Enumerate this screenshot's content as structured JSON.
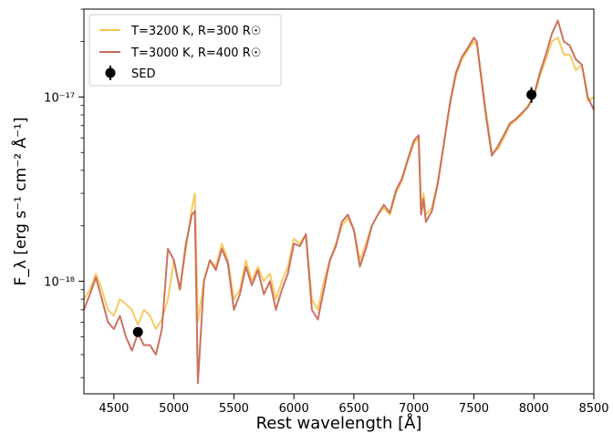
{
  "chart_data": {
    "type": "line",
    "xlabel": "Rest wavelength [Å]",
    "ylabel": "F_λ [erg s⁻¹ cm⁻² Å⁻¹]",
    "x_scale": "linear",
    "y_scale": "log",
    "xlim": [
      4250,
      8500
    ],
    "ylim": [
      2.45e-19,
      3e-17
    ],
    "x_ticks": [
      4500,
      5000,
      5500,
      6000,
      6500,
      7000,
      7500,
      8000,
      8500
    ],
    "x_tick_labels": [
      "4500",
      "5000",
      "5500",
      "6000",
      "6500",
      "7000",
      "7500",
      "8000",
      "8500"
    ],
    "y_ticks": [
      1e-18,
      1e-17
    ],
    "y_tick_labels": [
      "10⁻¹⁸",
      "10⁻¹⁷"
    ],
    "y_minor_ticks": [
      3e-19,
      4e-19,
      5e-19,
      6e-19,
      7e-19,
      8e-19,
      9e-19,
      2e-18,
      3e-18,
      4e-18,
      5e-18,
      6e-18,
      7e-18,
      8e-18,
      9e-18,
      2e-17,
      3e-17
    ],
    "grid": false,
    "legend_position": "top-left",
    "legend": [
      {
        "label": "T=3200 K, R=300 R☉",
        "kind": "line",
        "color": "#f6c453"
      },
      {
        "label": "T=3000 K, R=400 R☉",
        "kind": "line",
        "color": "#c86a58"
      },
      {
        "label": "SED",
        "kind": "errorbar",
        "color": "#000000"
      }
    ],
    "series": [
      {
        "name": "T=3200 K, R=300 R☉",
        "color": "#f6c453",
        "x": [
          4250,
          4300,
          4350,
          4400,
          4450,
          4500,
          4550,
          4600,
          4650,
          4700,
          4750,
          4800,
          4850,
          4900,
          4950,
          5000,
          5050,
          5100,
          5150,
          5175,
          5200,
          5250,
          5300,
          5350,
          5400,
          5450,
          5500,
          5550,
          5600,
          5650,
          5700,
          5750,
          5800,
          5850,
          5900,
          5950,
          6000,
          6050,
          6100,
          6150,
          6200,
          6250,
          6300,
          6350,
          6400,
          6450,
          6500,
          6550,
          6600,
          6650,
          6700,
          6750,
          6800,
          6850,
          6900,
          6950,
          7000,
          7040,
          7060,
          7080,
          7100,
          7150,
          7200,
          7250,
          7300,
          7350,
          7400,
          7450,
          7500,
          7525,
          7550,
          7600,
          7650,
          7700,
          7750,
          7800,
          7850,
          7900,
          7950,
          8000,
          8050,
          8100,
          8150,
          8200,
          8250,
          8300,
          8350,
          8400,
          8450,
          8500
        ],
        "y": [
          8e-19,
          9e-19,
          1.1e-18,
          9e-19,
          7e-19,
          6.5e-19,
          8e-19,
          7.5e-19,
          7e-19,
          5.8e-19,
          7e-19,
          6.5e-19,
          5.5e-19,
          6.2e-19,
          8e-19,
          1.3e-18,
          9e-19,
          1.5e-18,
          2.5e-18,
          3e-18,
          6e-19,
          1e-18,
          1.3e-18,
          1.2e-18,
          1.6e-18,
          1.3e-18,
          8e-19,
          9e-19,
          1.3e-18,
          1e-18,
          1.2e-18,
          1e-18,
          1.1e-18,
          8e-19,
          1e-18,
          1.2e-18,
          1.7e-18,
          1.6e-18,
          1.8e-18,
          8e-19,
          7e-19,
          1e-18,
          1.3e-18,
          1.6e-18,
          2e-18,
          2.2e-18,
          1.9e-18,
          1.3e-18,
          1.6e-18,
          2e-18,
          2.3e-18,
          2.5e-18,
          2.3e-18,
          3e-18,
          3.5e-18,
          4.5e-18,
          5.6e-18,
          6e-18,
          2.5e-18,
          3e-18,
          2.3e-18,
          2.5e-18,
          3.5e-18,
          5.5e-18,
          9e-18,
          1.3e-17,
          1.6e-17,
          1.8e-17,
          2e-17,
          1.9e-17,
          1.5e-17,
          8.5e-18,
          5e-18,
          5.2e-18,
          6e-18,
          7e-18,
          7.5e-18,
          8e-18,
          9e-18,
          1e-17,
          1.3e-17,
          1.6e-17,
          2e-17,
          2.1e-17,
          1.7e-17,
          1.7e-17,
          1.4e-17,
          1.5e-17,
          9.5e-18,
          1e-17
        ]
      },
      {
        "name": "T=3000 K, R=400 R☉",
        "color": "#c86a58",
        "x": [
          4250,
          4300,
          4350,
          4400,
          4450,
          4500,
          4550,
          4600,
          4650,
          4700,
          4750,
          4800,
          4850,
          4900,
          4950,
          5000,
          5050,
          5100,
          5150,
          5175,
          5200,
          5250,
          5300,
          5350,
          5400,
          5450,
          5500,
          5550,
          5600,
          5650,
          5700,
          5750,
          5800,
          5850,
          5900,
          5950,
          6000,
          6050,
          6100,
          6150,
          6200,
          6250,
          6300,
          6350,
          6400,
          6450,
          6500,
          6550,
          6600,
          6650,
          6700,
          6750,
          6800,
          6850,
          6900,
          6950,
          7000,
          7040,
          7060,
          7080,
          7100,
          7150,
          7200,
          7250,
          7300,
          7350,
          7400,
          7450,
          7500,
          7525,
          7550,
          7600,
          7650,
          7700,
          7750,
          7800,
          7850,
          7900,
          7950,
          8000,
          8050,
          8100,
          8150,
          8200,
          8250,
          8300,
          8350,
          8400,
          8450,
          8500
        ],
        "y": [
          7e-19,
          8.5e-19,
          1.05e-18,
          8e-19,
          6e-19,
          5.5e-19,
          6.5e-19,
          5e-19,
          4.2e-19,
          5.2e-19,
          4.5e-19,
          4.5e-19,
          4e-19,
          5.5e-19,
          1.5e-18,
          1.3e-18,
          9e-19,
          1.6e-18,
          2.3e-18,
          2.4e-18,
          2.8e-19,
          1e-18,
          1.3e-18,
          1.15e-18,
          1.5e-18,
          1.25e-18,
          7e-19,
          8.5e-19,
          1.2e-18,
          9.5e-19,
          1.15e-18,
          8.5e-19,
          1e-18,
          7e-19,
          9e-19,
          1.1e-18,
          1.6e-18,
          1.55e-18,
          1.8e-18,
          7e-19,
          6.2e-19,
          9e-19,
          1.3e-18,
          1.55e-18,
          2.1e-18,
          2.3e-18,
          1.9e-18,
          1.2e-18,
          1.5e-18,
          2e-18,
          2.3e-18,
          2.6e-18,
          2.35e-18,
          3.1e-18,
          3.6e-18,
          4.6e-18,
          5.8e-18,
          6.2e-18,
          2.3e-18,
          2.8e-18,
          2.1e-18,
          2.4e-18,
          3.4e-18,
          5.6e-18,
          9.2e-18,
          1.35e-17,
          1.65e-17,
          1.85e-17,
          2.1e-17,
          2e-17,
          1.45e-17,
          8e-18,
          4.8e-18,
          5.4e-18,
          6.2e-18,
          7.2e-18,
          7.6e-18,
          8.2e-18,
          8.8e-18,
          1.02e-17,
          1.35e-17,
          1.7e-17,
          2.2e-17,
          2.6e-17,
          2e-17,
          1.9e-17,
          1.6e-17,
          1.5e-17,
          1e-17,
          8.5e-18
        ]
      }
    ],
    "sed": {
      "name": "SED",
      "color": "#000000",
      "x": [
        4700,
        7980
      ],
      "y": [
        5.3e-19,
        1.03e-17
      ],
      "yerr_low": [
        3e-20,
        1e-18
      ],
      "yerr_high": [
        3e-20,
        1e-18
      ]
    }
  }
}
